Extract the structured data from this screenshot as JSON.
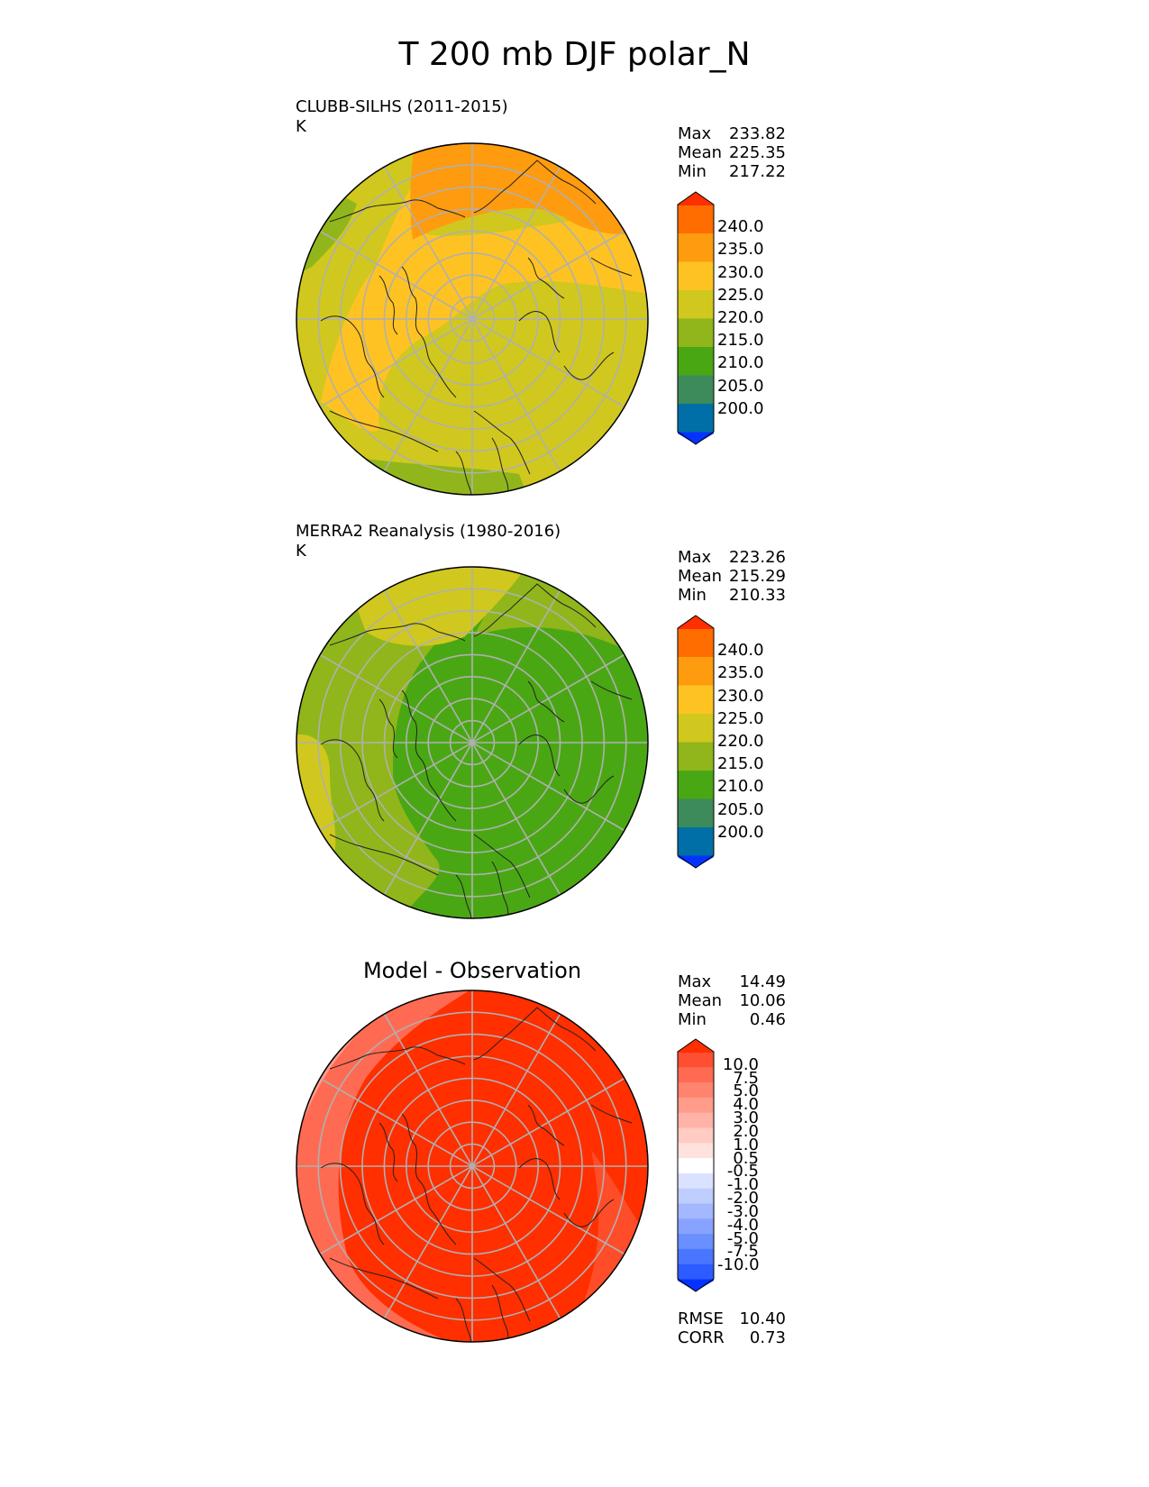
{
  "title": "T 200 mb DJF polar_N",
  "panels": [
    {
      "id": "test",
      "label": "CLUBB-SILHS (2011-2015)",
      "units": "K",
      "stats": {
        "max_label": "Max",
        "max": "233.82",
        "mean_label": "Mean",
        "mean": "225.35",
        "min_label": "Min",
        "min": "217.22"
      },
      "colorbar": {
        "colors": [
          "#0433ff",
          "#006fa7",
          "#3d8b5a",
          "#4aa714",
          "#90b61b",
          "#d0c81e",
          "#fec322",
          "#ff9b0e",
          "#ff6d00",
          "#ff2f00"
        ],
        "ticks": [
          "240.0",
          "235.0",
          "230.0",
          "225.0",
          "220.0",
          "215.0",
          "210.0",
          "205.0",
          "200.0"
        ]
      }
    },
    {
      "id": "reference",
      "label": "MERRA2 Reanalysis (1980-2016)",
      "units": "K",
      "stats": {
        "max_label": "Max",
        "max": "223.26",
        "mean_label": "Mean",
        "mean": "215.29",
        "min_label": "Min",
        "min": "210.33"
      },
      "colorbar": {
        "colors": [
          "#0433ff",
          "#006fa7",
          "#3d8b5a",
          "#4aa714",
          "#90b61b",
          "#d0c81e",
          "#fec322",
          "#ff9b0e",
          "#ff6d00",
          "#ff2f00"
        ],
        "ticks": [
          "240.0",
          "235.0",
          "230.0",
          "225.0",
          "220.0",
          "215.0",
          "210.0",
          "205.0",
          "200.0"
        ]
      }
    },
    {
      "id": "difference",
      "label": "Model - Observation",
      "stats": {
        "max_label": "Max",
        "max": "14.49",
        "mean_label": "Mean",
        "mean": "10.06",
        "min_label": "Min",
        "min": "0.46"
      },
      "metrics": {
        "rmse_label": "RMSE",
        "rmse": "10.40",
        "corr_label": "CORR",
        "corr": "0.73"
      },
      "colorbar": {
        "colors": [
          "#0433ff",
          "#2c5cff",
          "#4a75ff",
          "#6a8fff",
          "#87a3ff",
          "#a3b8ff",
          "#bfcdff",
          "#dae2ff",
          "#ffffff",
          "#ffe2de",
          "#ffcbc2",
          "#ffb3a6",
          "#ff9c8a",
          "#ff846e",
          "#ff6b52",
          "#ff4f33",
          "#ff2f00"
        ],
        "ticks": [
          "10.0",
          "7.5",
          "5.0",
          "4.0",
          "3.0",
          "2.0",
          "1.0",
          "0.5",
          "-0.5",
          "-1.0",
          "-2.0",
          "-3.0",
          "-4.0",
          "-5.0",
          "-7.5",
          "-10.0"
        ]
      }
    }
  ],
  "map": {
    "colors": {
      "test_fill": "#d0c81e",
      "test_orange": "#fec322",
      "test_dark_orange": "#ff9b0e",
      "test_green": "#90b61b",
      "ref_fill": "#4aa714",
      "ref_light_green": "#90b61b",
      "ref_yellow": "#d0c81e",
      "diff_fill": "#ff2f00",
      "diff_light": "#ff6b52",
      "diff_lighter": "#ff9c8a",
      "diff_pale": "#ffcbc2",
      "grid": "#b0b0b0",
      "coast": "#222222"
    },
    "gridline_style": "solid",
    "projection": "north-polar-stereographic"
  }
}
